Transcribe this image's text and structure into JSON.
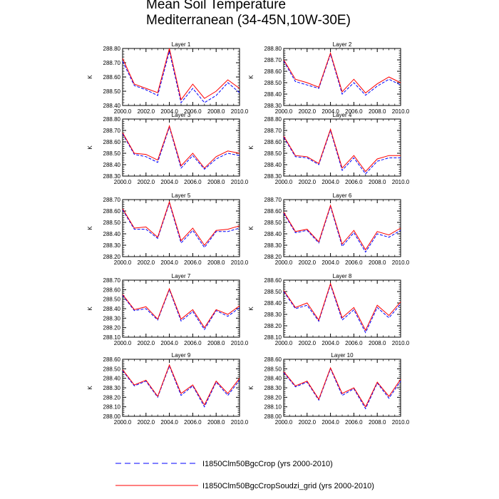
{
  "figure": {
    "title_line1": "Mean Soil Temperature",
    "title_line2": "Mediterranean (34-45N,10W-30E)"
  },
  "legend": {
    "series_1": "I1850Clm50BgcCrop (yrs 2000-2010)",
    "series_2": "I1850Clm50BgcCropSoudzi_grid (yrs 2000-2010)"
  },
  "colors": {
    "series_1": "#0000ff",
    "series_2": "#ff0000"
  },
  "chart_data": [
    {
      "type": "line",
      "title": "Layer 1",
      "ylabel": "K",
      "x": [
        2000,
        2001,
        2002,
        2003,
        2004,
        2005,
        2006,
        2007,
        2008,
        2009,
        2010
      ],
      "xticks": [
        "2000.0",
        "2002.0",
        "2004.0",
        "2006.0",
        "2008.0",
        "2010.0"
      ],
      "xlim": [
        2000,
        2010
      ],
      "ylim": [
        288.4,
        288.8
      ],
      "yticks": [
        "288.40",
        "288.50",
        "288.60",
        "288.70",
        "288.80"
      ],
      "series": [
        {
          "name": "I1850Clm50BgcCrop (yrs 2000-2010)",
          "style": "dashed",
          "color": "#0000ff",
          "values": [
            288.71,
            288.54,
            288.51,
            288.47,
            288.78,
            288.42,
            288.52,
            288.42,
            288.47,
            288.56,
            288.49
          ]
        },
        {
          "name": "I1850Clm50BgcCropSoudzi_grid (yrs 2000-2010)",
          "style": "solid",
          "color": "#ff0000",
          "values": [
            288.73,
            288.55,
            288.52,
            288.49,
            288.8,
            288.44,
            288.55,
            288.45,
            288.5,
            288.58,
            288.52
          ]
        }
      ]
    },
    {
      "type": "line",
      "title": "Layer 2",
      "ylabel": "K",
      "x": [
        2000,
        2001,
        2002,
        2003,
        2004,
        2005,
        2006,
        2007,
        2008,
        2009,
        2010
      ],
      "xticks": [
        "2000.0",
        "2002.0",
        "2004.0",
        "2006.0",
        "2008.0",
        "2010.0"
      ],
      "xlim": [
        2000,
        2010
      ],
      "ylim": [
        288.3,
        288.8
      ],
      "yticks": [
        "288.30",
        "288.40",
        "288.50",
        "288.60",
        "288.70",
        "288.80"
      ],
      "series": [
        {
          "name": "I1850Clm50BgcCrop (yrs 2000-2010)",
          "style": "dashed",
          "color": "#0000ff",
          "values": [
            288.69,
            288.51,
            288.48,
            288.45,
            288.75,
            288.4,
            288.5,
            288.39,
            288.47,
            288.53,
            288.48
          ]
        },
        {
          "name": "I1850Clm50BgcCropSoudzi_grid (yrs 2000-2010)",
          "style": "solid",
          "color": "#ff0000",
          "values": [
            288.7,
            288.53,
            288.5,
            288.46,
            288.76,
            288.42,
            288.53,
            288.41,
            288.49,
            288.55,
            288.5
          ]
        }
      ]
    },
    {
      "type": "line",
      "title": "Layer 3",
      "ylabel": "K",
      "x": [
        2000,
        2001,
        2002,
        2003,
        2004,
        2005,
        2006,
        2007,
        2008,
        2009,
        2010
      ],
      "xticks": [
        "2000.0",
        "2002.0",
        "2004.0",
        "2006.0",
        "2008.0",
        "2010.0"
      ],
      "xlim": [
        2000,
        2010
      ],
      "ylim": [
        288.3,
        288.8
      ],
      "yticks": [
        "288.30",
        "288.40",
        "288.50",
        "288.60",
        "288.70",
        "288.80"
      ],
      "series": [
        {
          "name": "I1850Clm50BgcCrop (yrs 2000-2010)",
          "style": "dashed",
          "color": "#0000ff",
          "values": [
            288.67,
            288.49,
            288.47,
            288.42,
            288.73,
            288.37,
            288.48,
            288.36,
            288.45,
            288.5,
            288.48
          ]
        },
        {
          "name": "I1850Clm50BgcCropSoudzi_grid (yrs 2000-2010)",
          "style": "solid",
          "color": "#ff0000",
          "values": [
            288.68,
            288.5,
            288.49,
            288.44,
            288.74,
            288.39,
            288.5,
            288.37,
            288.47,
            288.52,
            288.5
          ]
        }
      ]
    },
    {
      "type": "line",
      "title": "Layer 4",
      "ylabel": "K",
      "x": [
        2000,
        2001,
        2002,
        2003,
        2004,
        2005,
        2006,
        2007,
        2008,
        2009,
        2010
      ],
      "xticks": [
        "2000.0",
        "2002.0",
        "2004.0",
        "2006.0",
        "2008.0",
        "2010.0"
      ],
      "xlim": [
        2000,
        2010
      ],
      "ylim": [
        288.3,
        288.8
      ],
      "yticks": [
        "288.30",
        "288.40",
        "288.50",
        "288.60",
        "288.70",
        "288.80"
      ],
      "series": [
        {
          "name": "I1850Clm50BgcCrop (yrs 2000-2010)",
          "style": "dashed",
          "color": "#0000ff",
          "values": [
            288.64,
            288.47,
            288.46,
            288.4,
            288.7,
            288.35,
            288.46,
            288.32,
            288.43,
            288.46,
            288.46
          ]
        },
        {
          "name": "I1850Clm50BgcCropSoudzi_grid (yrs 2000-2010)",
          "style": "solid",
          "color": "#ff0000",
          "values": [
            288.65,
            288.48,
            288.47,
            288.41,
            288.71,
            288.37,
            288.48,
            288.34,
            288.45,
            288.48,
            288.48
          ]
        }
      ]
    },
    {
      "type": "line",
      "title": "Layer 5",
      "ylabel": "K",
      "x": [
        2000,
        2001,
        2002,
        2003,
        2004,
        2005,
        2006,
        2007,
        2008,
        2009,
        2010
      ],
      "xticks": [
        "2000.0",
        "2002.0",
        "2004.0",
        "2006.0",
        "2008.0",
        "2010.0"
      ],
      "xlim": [
        2000,
        2010
      ],
      "ylim": [
        288.2,
        288.7
      ],
      "yticks": [
        "288.20",
        "288.30",
        "288.40",
        "288.50",
        "288.60",
        "288.70"
      ],
      "series": [
        {
          "name": "I1850Clm50BgcCrop (yrs 2000-2010)",
          "style": "dashed",
          "color": "#0000ff",
          "values": [
            288.61,
            288.44,
            288.44,
            288.36,
            288.67,
            288.32,
            288.43,
            288.28,
            288.42,
            288.42,
            288.45
          ]
        },
        {
          "name": "I1850Clm50BgcCropSoudzi_grid (yrs 2000-2010)",
          "style": "solid",
          "color": "#ff0000",
          "values": [
            288.62,
            288.45,
            288.46,
            288.37,
            288.68,
            288.34,
            288.45,
            288.3,
            288.43,
            288.44,
            288.47
          ]
        }
      ]
    },
    {
      "type": "line",
      "title": "Layer 6",
      "ylabel": "K",
      "x": [
        2000,
        2001,
        2002,
        2003,
        2004,
        2005,
        2006,
        2007,
        2008,
        2009,
        2010
      ],
      "xticks": [
        "2000.0",
        "2002.0",
        "2004.0",
        "2006.0",
        "2008.0",
        "2010.0"
      ],
      "xlim": [
        2000,
        2010
      ],
      "ylim": [
        288.2,
        288.7
      ],
      "yticks": [
        "288.20",
        "288.30",
        "288.40",
        "288.50",
        "288.60",
        "288.70"
      ],
      "series": [
        {
          "name": "I1850Clm50BgcCrop (yrs 2000-2010)",
          "style": "dashed",
          "color": "#0000ff",
          "values": [
            288.58,
            288.41,
            288.43,
            288.32,
            288.64,
            288.29,
            288.41,
            288.24,
            288.4,
            288.37,
            288.43
          ]
        },
        {
          "name": "I1850Clm50BgcCropSoudzi_grid (yrs 2000-2010)",
          "style": "solid",
          "color": "#ff0000",
          "values": [
            288.59,
            288.42,
            288.44,
            288.33,
            288.65,
            288.31,
            288.43,
            288.26,
            288.42,
            288.39,
            288.45
          ]
        }
      ]
    },
    {
      "type": "line",
      "title": "Layer 7",
      "ylabel": "K",
      "x": [
        2000,
        2001,
        2002,
        2003,
        2004,
        2005,
        2006,
        2007,
        2008,
        2009,
        2010
      ],
      "xticks": [
        "2000.0",
        "2002.0",
        "2004.0",
        "2006.0",
        "2008.0",
        "2010.0"
      ],
      "xlim": [
        2000,
        2010
      ],
      "ylim": [
        288.1,
        288.7
      ],
      "yticks": [
        "288.10",
        "288.20",
        "288.30",
        "288.40",
        "288.50",
        "288.60",
        "288.70"
      ],
      "series": [
        {
          "name": "I1850Clm50BgcCrop (yrs 2000-2010)",
          "style": "dashed",
          "color": "#0000ff",
          "values": [
            288.54,
            288.38,
            288.4,
            288.28,
            288.6,
            288.27,
            288.37,
            288.18,
            288.38,
            288.32,
            288.41
          ]
        },
        {
          "name": "I1850Clm50BgcCropSoudzi_grid (yrs 2000-2010)",
          "style": "solid",
          "color": "#ff0000",
          "values": [
            288.55,
            288.39,
            288.42,
            288.29,
            288.61,
            288.29,
            288.39,
            288.2,
            288.39,
            288.34,
            288.43
          ]
        }
      ]
    },
    {
      "type": "line",
      "title": "Layer 8",
      "ylabel": "K",
      "x": [
        2000,
        2001,
        2002,
        2003,
        2004,
        2005,
        2006,
        2007,
        2008,
        2009,
        2010
      ],
      "xticks": [
        "2000.0",
        "2002.0",
        "2004.0",
        "2006.0",
        "2008.0",
        "2010.0"
      ],
      "xlim": [
        2000,
        2010
      ],
      "ylim": [
        288.1,
        288.6
      ],
      "yticks": [
        "288.10",
        "288.20",
        "288.30",
        "288.40",
        "288.50",
        "288.60"
      ],
      "series": [
        {
          "name": "I1850Clm50BgcCrop (yrs 2000-2010)",
          "style": "dashed",
          "color": "#0000ff",
          "values": [
            288.5,
            288.35,
            288.38,
            288.24,
            288.56,
            288.25,
            288.34,
            288.14,
            288.36,
            288.27,
            288.39
          ]
        },
        {
          "name": "I1850Clm50BgcCropSoudzi_grid (yrs 2000-2010)",
          "style": "solid",
          "color": "#ff0000",
          "values": [
            288.51,
            288.36,
            288.4,
            288.25,
            288.57,
            288.27,
            288.36,
            288.16,
            288.38,
            288.29,
            288.41
          ]
        }
      ]
    },
    {
      "type": "line",
      "title": "Layer 9",
      "ylabel": "K",
      "x": [
        2000,
        2001,
        2002,
        2003,
        2004,
        2005,
        2006,
        2007,
        2008,
        2009,
        2010
      ],
      "xticks": [
        "2000.0",
        "2002.0",
        "2004.0",
        "2006.0",
        "2008.0",
        "2010.0"
      ],
      "xlim": [
        2000,
        2010
      ],
      "ylim": [
        288.0,
        288.6
      ],
      "yticks": [
        "288.00",
        "288.10",
        "288.20",
        "288.30",
        "288.40",
        "288.50",
        "288.60"
      ],
      "series": [
        {
          "name": "I1850Clm50BgcCrop (yrs 2000-2010)",
          "style": "dashed",
          "color": "#0000ff",
          "values": [
            288.48,
            288.32,
            288.37,
            288.2,
            288.53,
            288.22,
            288.32,
            288.1,
            288.36,
            288.22,
            288.38
          ]
        },
        {
          "name": "I1850Clm50BgcCropSoudzi_grid (yrs 2000-2010)",
          "style": "solid",
          "color": "#ff0000",
          "values": [
            288.49,
            288.33,
            288.38,
            288.21,
            288.54,
            288.24,
            288.33,
            288.12,
            288.37,
            288.24,
            288.4
          ]
        }
      ]
    },
    {
      "type": "line",
      "title": "Layer 10",
      "ylabel": "K",
      "x": [
        2000,
        2001,
        2002,
        2003,
        2004,
        2005,
        2006,
        2007,
        2008,
        2009,
        2010
      ],
      "xticks": [
        "2000.0",
        "2002.0",
        "2004.0",
        "2006.0",
        "2008.0",
        "2010.0"
      ],
      "xlim": [
        2000,
        2010
      ],
      "ylim": [
        288.0,
        288.6
      ],
      "yticks": [
        "288.00",
        "288.10",
        "288.20",
        "288.30",
        "288.40",
        "288.50",
        "288.60"
      ],
      "series": [
        {
          "name": "I1850Clm50BgcCrop (yrs 2000-2010)",
          "style": "dashed",
          "color": "#0000ff",
          "values": [
            288.46,
            288.31,
            288.36,
            288.17,
            288.5,
            288.22,
            288.29,
            288.08,
            288.35,
            288.19,
            288.37
          ]
        },
        {
          "name": "I1850Clm50BgcCropSoudzi_grid (yrs 2000-2010)",
          "style": "solid",
          "color": "#ff0000",
          "values": [
            288.47,
            288.32,
            288.37,
            288.18,
            288.51,
            288.24,
            288.3,
            288.1,
            288.36,
            288.21,
            288.39
          ]
        }
      ]
    }
  ]
}
